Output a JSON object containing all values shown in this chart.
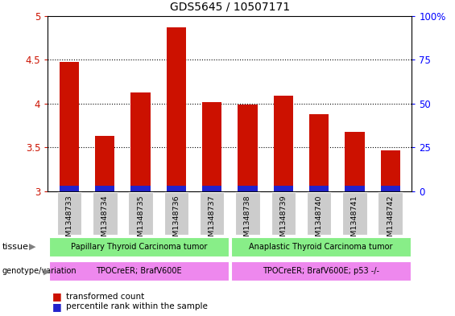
{
  "title": "GDS5645 / 10507171",
  "samples": [
    "GSM1348733",
    "GSM1348734",
    "GSM1348735",
    "GSM1348736",
    "GSM1348737",
    "GSM1348738",
    "GSM1348739",
    "GSM1348740",
    "GSM1348741",
    "GSM1348742"
  ],
  "transformed_count": [
    4.47,
    3.63,
    4.13,
    4.87,
    4.02,
    3.99,
    4.09,
    3.88,
    3.68,
    3.47
  ],
  "percentile_rank_vals": [
    3,
    2,
    3,
    4,
    3,
    3,
    3,
    3,
    3,
    2
  ],
  "ylim_left": [
    3.0,
    5.0
  ],
  "ylim_right": [
    0,
    100
  ],
  "yticks_left": [
    3.0,
    3.5,
    4.0,
    4.5,
    5.0
  ],
  "yticks_right": [
    0,
    25,
    50,
    75,
    100
  ],
  "bar_color_red": "#cc1100",
  "bar_color_blue": "#2222cc",
  "tissue_group1": "Papillary Thyroid Carcinoma tumor",
  "tissue_group2": "Anaplastic Thyroid Carcinoma tumor",
  "genotype_group1": "TPOCreER; BrafV600E",
  "genotype_group2": "TPOCreER; BrafV600E; p53 -/-",
  "tissue_color": "#88ee88",
  "genotype_color": "#ee88ee",
  "n_group1": 5,
  "n_group2": 5,
  "legend_red": "transformed count",
  "legend_blue": "percentile rank within the sample",
  "tick_bg_color": "#cccccc",
  "blue_bar_height": 0.06
}
